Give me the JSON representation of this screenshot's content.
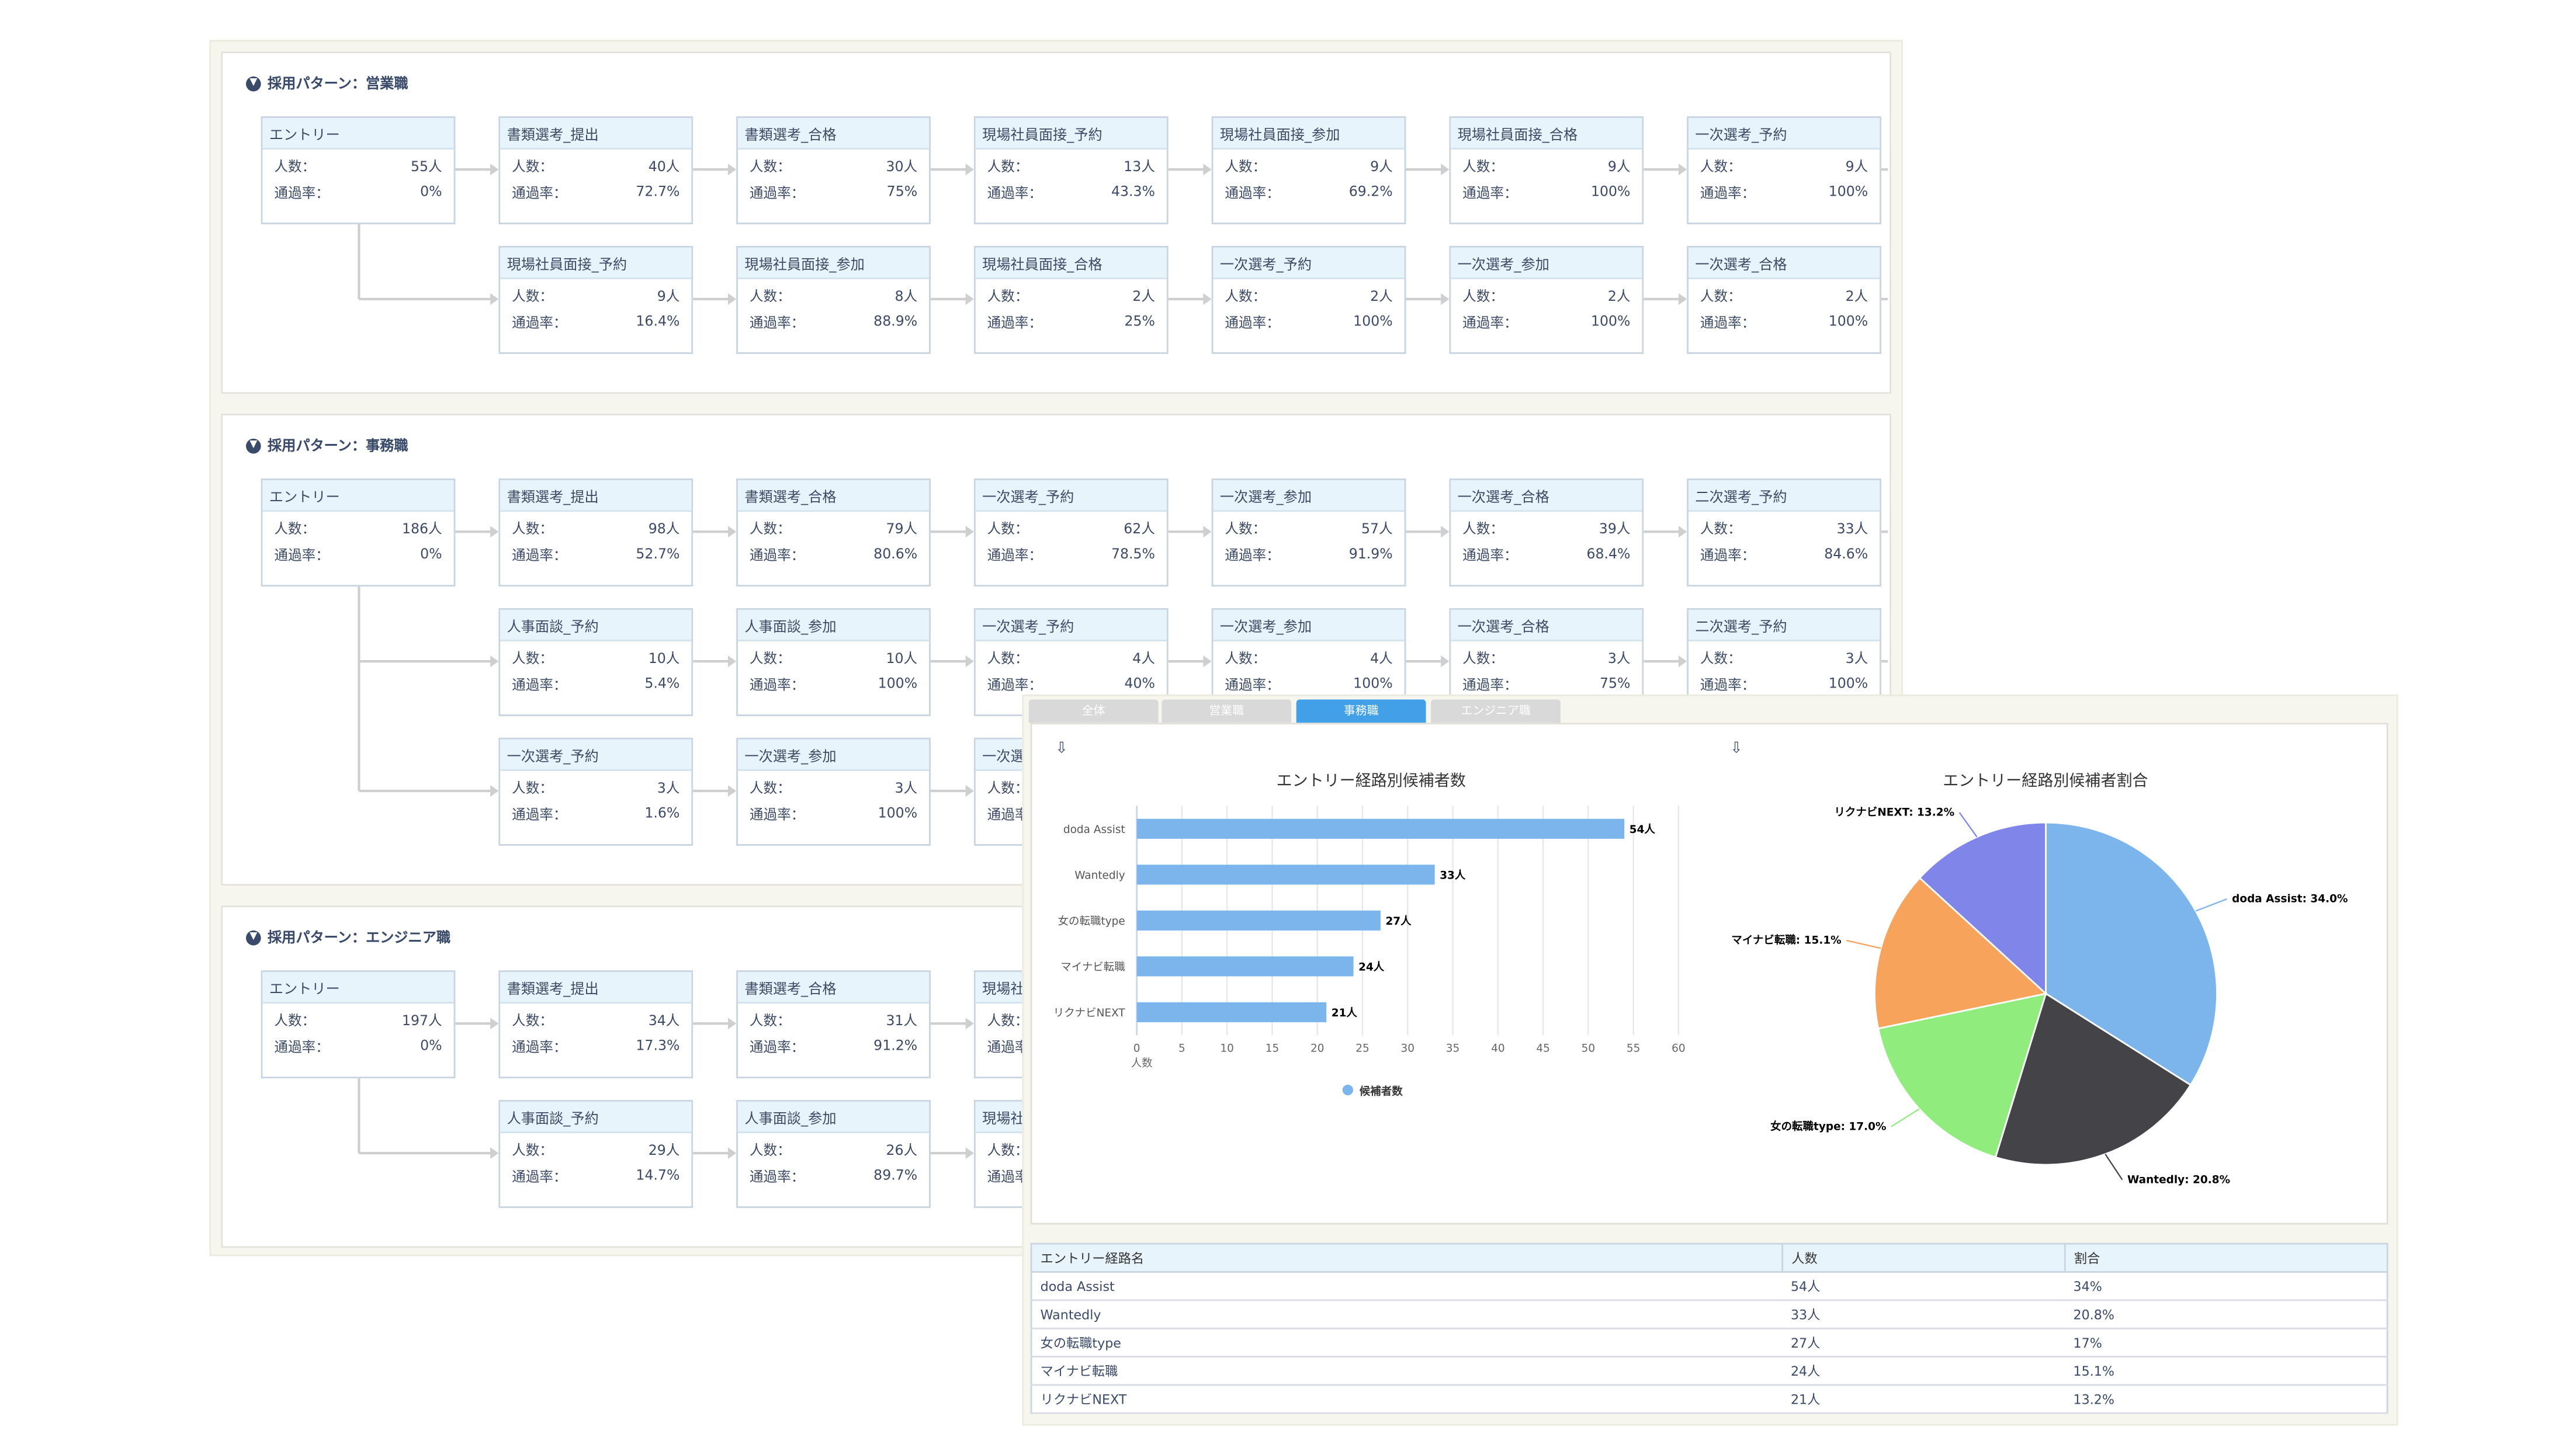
{
  "labels": {
    "count": "人数：",
    "rate": "通過率："
  },
  "sections": [
    {
      "title": "採用パターン：営業職",
      "entry": {
        "name": "エントリー",
        "count": "55人",
        "rate": "0%"
      },
      "rows": [
        [
          {
            "name": "書類選考_提出",
            "count": "40人",
            "rate": "72.7%"
          },
          {
            "name": "書類選考_合格",
            "count": "30人",
            "rate": "75%"
          },
          {
            "name": "現場社員面接_予約",
            "count": "13人",
            "rate": "43.3%"
          },
          {
            "name": "現場社員面接_参加",
            "count": "9人",
            "rate": "69.2%"
          },
          {
            "name": "現場社員面接_合格",
            "count": "9人",
            "rate": "100%"
          },
          {
            "name": "一次選考_予約",
            "count": "9人",
            "rate": "100%"
          }
        ],
        [
          {
            "name": "現場社員面接_予約",
            "count": "9人",
            "rate": "16.4%"
          },
          {
            "name": "現場社員面接_参加",
            "count": "8人",
            "rate": "88.9%"
          },
          {
            "name": "現場社員面接_合格",
            "count": "2人",
            "rate": "25%"
          },
          {
            "name": "一次選考_予約",
            "count": "2人",
            "rate": "100%"
          },
          {
            "name": "一次選考_参加",
            "count": "2人",
            "rate": "100%"
          },
          {
            "name": "一次選考_合格",
            "count": "2人",
            "rate": "100%"
          }
        ]
      ]
    },
    {
      "title": "採用パターン：事務職",
      "entry": {
        "name": "エントリー",
        "count": "186人",
        "rate": "0%"
      },
      "rows": [
        [
          {
            "name": "書類選考_提出",
            "count": "98人",
            "rate": "52.7%"
          },
          {
            "name": "書類選考_合格",
            "count": "79人",
            "rate": "80.6%"
          },
          {
            "name": "一次選考_予約",
            "count": "62人",
            "rate": "78.5%"
          },
          {
            "name": "一次選考_参加",
            "count": "57人",
            "rate": "91.9%"
          },
          {
            "name": "一次選考_合格",
            "count": "39人",
            "rate": "68.4%"
          },
          {
            "name": "二次選考_予約",
            "count": "33人",
            "rate": "84.6%"
          }
        ],
        [
          {
            "name": "人事面談_予約",
            "count": "10人",
            "rate": "5.4%"
          },
          {
            "name": "人事面談_参加",
            "count": "10人",
            "rate": "100%"
          },
          {
            "name": "一次選考_予約",
            "count": "4人",
            "rate": "40%"
          },
          {
            "name": "一次選考_参加",
            "count": "4人",
            "rate": "100%"
          },
          {
            "name": "一次選考_合格",
            "count": "3人",
            "rate": "75%"
          },
          {
            "name": "二次選考_予約",
            "count": "3人",
            "rate": "100%"
          }
        ],
        [
          {
            "name": "一次選考_予約",
            "count": "3人",
            "rate": "1.6%"
          },
          {
            "name": "一次選考_参加",
            "count": "3人",
            "rate": "100%"
          },
          {
            "name": "一次選",
            "count": "",
            "rate": ""
          }
        ]
      ]
    },
    {
      "title": "採用パターン：エンジニア職",
      "entry": {
        "name": "エントリー",
        "count": "197人",
        "rate": "0%"
      },
      "rows": [
        [
          {
            "name": "書類選考_提出",
            "count": "34人",
            "rate": "17.3%"
          },
          {
            "name": "書類選考_合格",
            "count": "31人",
            "rate": "91.2%"
          },
          {
            "name": "現場社",
            "count": "",
            "rate": ""
          }
        ],
        [
          {
            "name": "人事面談_予約",
            "count": "29人",
            "rate": "14.7%"
          },
          {
            "name": "人事面談_参加",
            "count": "26人",
            "rate": "89.7%"
          },
          {
            "name": "現場社",
            "count": "",
            "rate": ""
          }
        ]
      ]
    }
  ],
  "tabs": [
    {
      "label": "全体",
      "active": false
    },
    {
      "label": "営業職",
      "active": false
    },
    {
      "label": "事務職",
      "active": true
    },
    {
      "label": "エンジニア職",
      "active": false
    }
  ],
  "colors": {
    "bar": "#7cb5ec",
    "active_tab": "#42a0e8",
    "header_bg": "#e8f4fb"
  },
  "chart_data": [
    {
      "type": "bar",
      "title": "エントリー経路別候補者数",
      "categories": [
        "doda Assist",
        "Wantedly",
        "女の転職type",
        "マイナビ転職",
        "リクナビNEXT"
      ],
      "values": [
        54,
        33,
        27,
        24,
        21
      ],
      "value_labels": [
        "54人",
        "33人",
        "27人",
        "24人",
        "21人"
      ],
      "xlabel": "人数",
      "xlim": [
        0,
        60
      ],
      "ticks": [
        0,
        5,
        10,
        15,
        20,
        25,
        30,
        35,
        40,
        45,
        50,
        55,
        60
      ],
      "series": [
        {
          "name": "候補者数",
          "values": [
            54,
            33,
            27,
            24,
            21
          ]
        }
      ],
      "legend": "bottom-center",
      "grid": true
    },
    {
      "type": "pie",
      "title": "エントリー経路別候補者割合",
      "slices": [
        {
          "label": "doda Assist: 34.0%",
          "value": 34.0,
          "color": "#7cb5ec"
        },
        {
          "label": "Wantedly: 20.8%",
          "value": 20.8,
          "color": "#434348"
        },
        {
          "label": "女の転職type: 17.0%",
          "value": 17.0,
          "color": "#90ed7d"
        },
        {
          "label": "マイナビ転職: 15.1%",
          "value": 15.1,
          "color": "#f7a35c"
        },
        {
          "label": "リクナビNEXT: 13.2%",
          "value": 13.2,
          "color": "#8085e9"
        }
      ]
    }
  ],
  "table": {
    "headers": [
      "エントリー経路名",
      "人数",
      "割合"
    ],
    "rows": [
      [
        "doda Assist",
        "54人",
        "34%"
      ],
      [
        "Wantedly",
        "33人",
        "20.8%"
      ],
      [
        "女の転職type",
        "27人",
        "17%"
      ],
      [
        "マイナビ転職",
        "24人",
        "15.1%"
      ],
      [
        "リクナビNEXT",
        "21人",
        "13.2%"
      ]
    ]
  }
}
